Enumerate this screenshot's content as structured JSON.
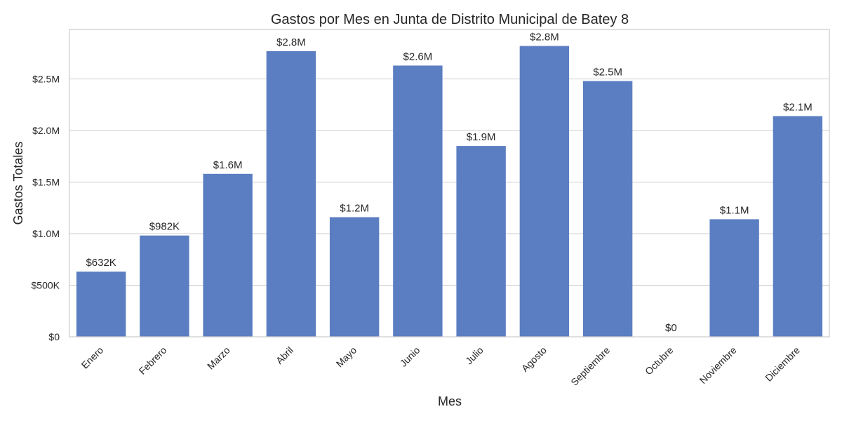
{
  "chart_data": {
    "type": "bar",
    "title": "Gastos por Mes en Junta de Distrito Municipal de Batey 8",
    "xlabel": "Mes",
    "ylabel": "Gastos Totales",
    "categories": [
      "Enero",
      "Febrero",
      "Marzo",
      "Abril",
      "Mayo",
      "Junio",
      "Julio",
      "Agosto",
      "Septiembre",
      "Octubre",
      "Noviembre",
      "Diciembre"
    ],
    "values": [
      632000,
      982000,
      1580000,
      2770000,
      1160000,
      2630000,
      1850000,
      2820000,
      2480000,
      0,
      1140000,
      2140000
    ],
    "value_labels": [
      "$632K",
      "$982K",
      "$1.6M",
      "$2.8M",
      "$1.2M",
      "$2.6M",
      "$1.9M",
      "$2.8M",
      "$2.5M",
      "$0",
      "$1.1M",
      "$2.1M"
    ],
    "ylim": [
      0,
      2980000
    ],
    "yticks": [
      0,
      500000,
      1000000,
      1500000,
      2000000,
      2500000
    ],
    "ytick_labels": [
      "$0",
      "$500K",
      "$1.0M",
      "$1.5M",
      "$2.0M",
      "$2.5M"
    ],
    "grid": true,
    "bar_color": "#5b7ec2"
  }
}
